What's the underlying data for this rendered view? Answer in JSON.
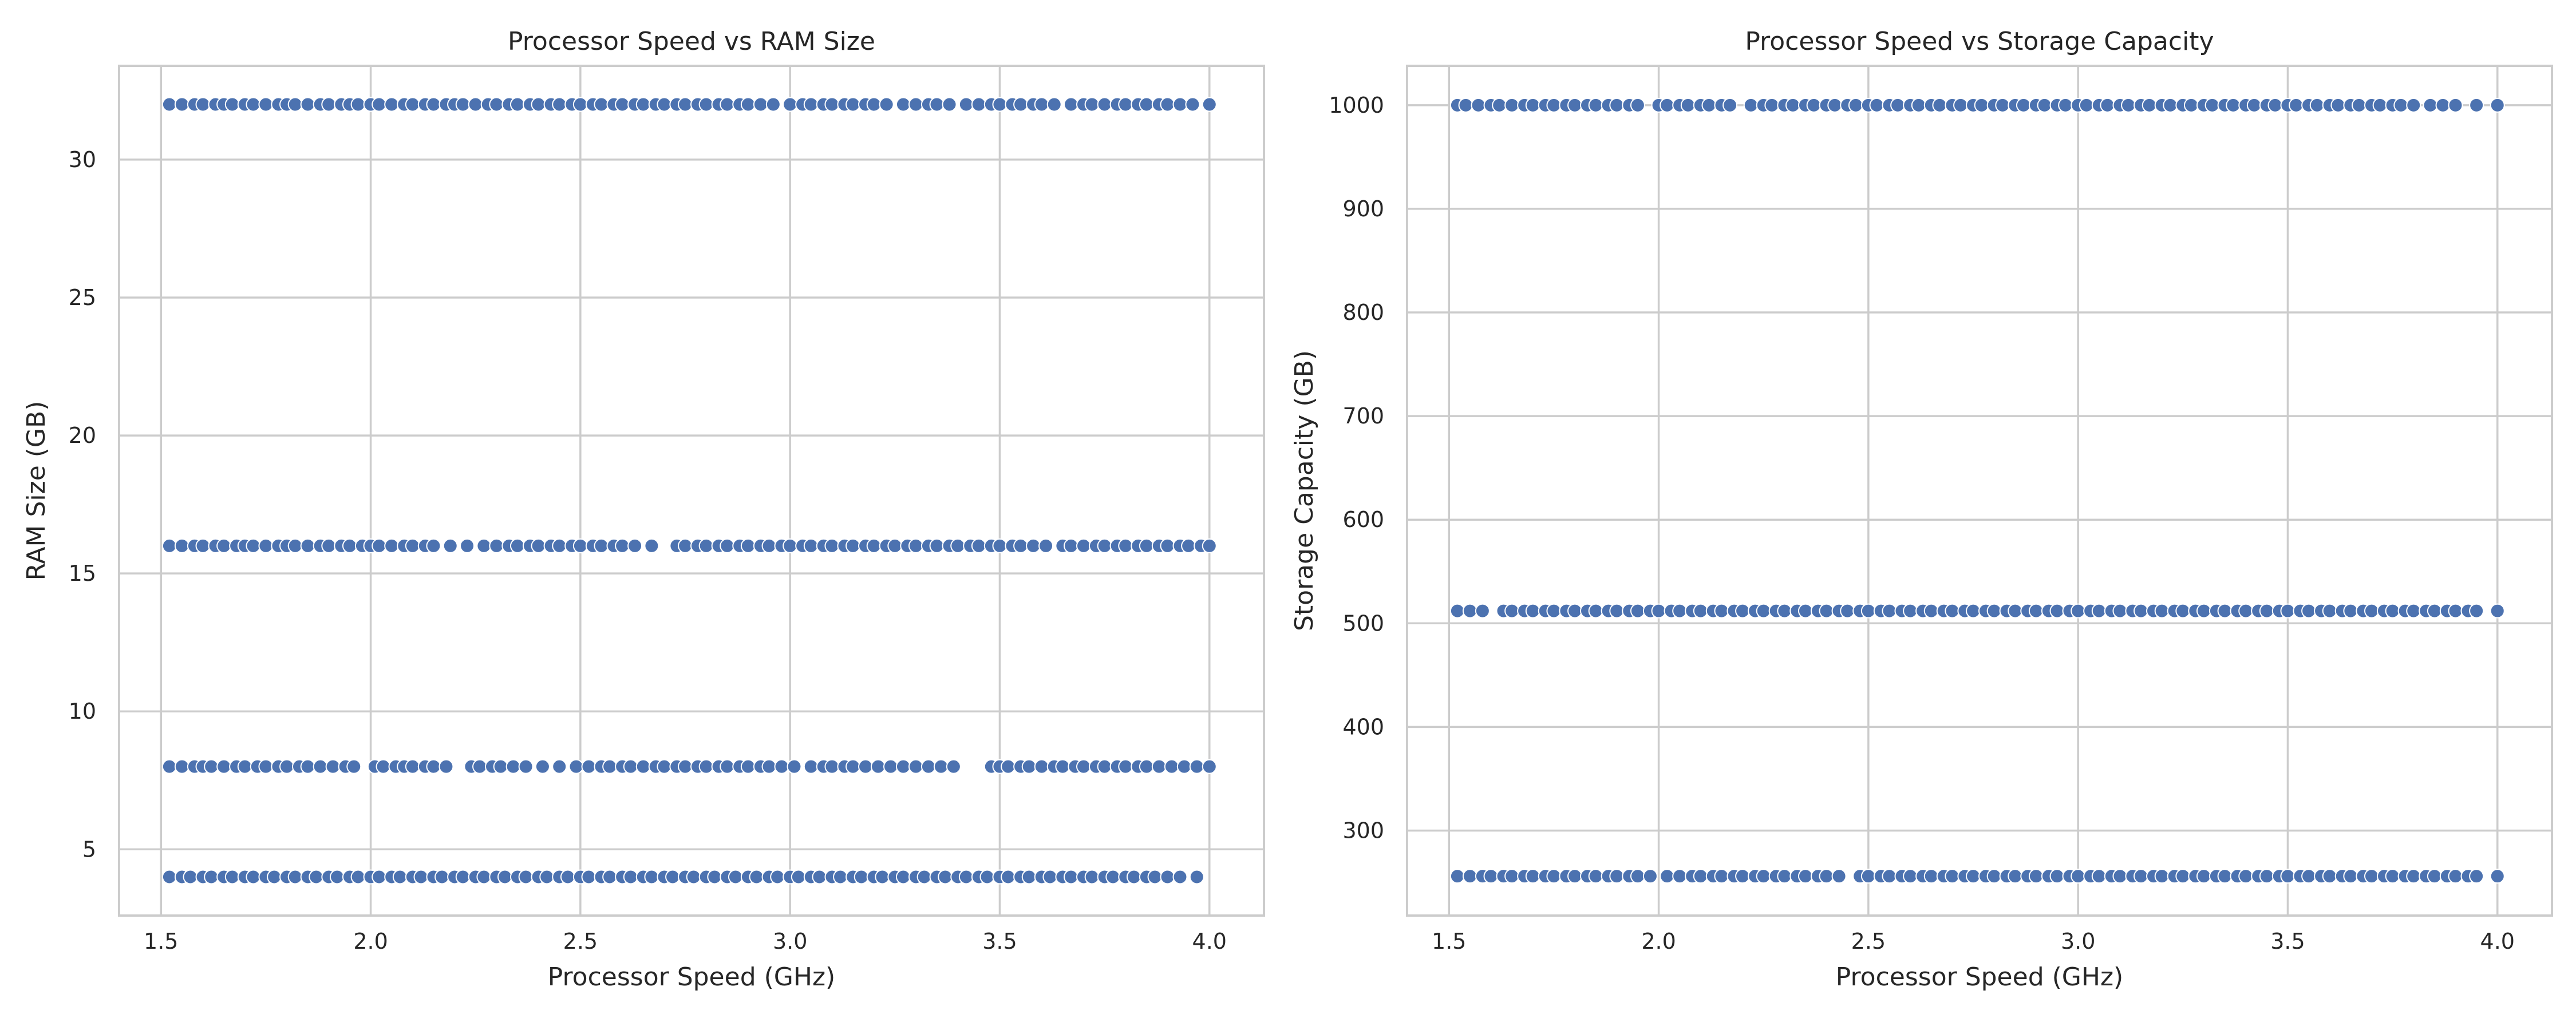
{
  "chart_data": [
    {
      "type": "scatter",
      "title": "Processor Speed vs RAM Size",
      "xlabel": "Processor Speed (GHz)",
      "ylabel": "RAM Size (GB)",
      "xlim": [
        1.4,
        4.13
      ],
      "ylim": [
        2.6,
        33.4
      ],
      "xticks": [
        1.5,
        2.0,
        2.5,
        3.0,
        3.5,
        4.0
      ],
      "xtick_labels": [
        "1.5",
        "2.0",
        "2.5",
        "3.0",
        "3.5",
        "4.0"
      ],
      "yticks": [
        5,
        10,
        15,
        20,
        25,
        30
      ],
      "ytick_labels": [
        "5",
        "10",
        "15",
        "20",
        "25",
        "30"
      ],
      "grid": true,
      "point_color": "#4c72b0",
      "levels": [
        {
          "y": 32,
          "x": [
            1.52,
            1.55,
            1.58,
            1.6,
            1.63,
            1.65,
            1.67,
            1.7,
            1.72,
            1.75,
            1.78,
            1.8,
            1.82,
            1.85,
            1.88,
            1.9,
            1.93,
            1.95,
            1.97,
            2.0,
            2.02,
            2.05,
            2.08,
            2.1,
            2.13,
            2.15,
            2.18,
            2.2,
            2.22,
            2.25,
            2.28,
            2.3,
            2.33,
            2.35,
            2.38,
            2.4,
            2.43,
            2.45,
            2.48,
            2.5,
            2.53,
            2.55,
            2.58,
            2.6,
            2.63,
            2.65,
            2.68,
            2.7,
            2.73,
            2.75,
            2.78,
            2.8,
            2.83,
            2.85,
            2.88,
            2.9,
            2.93,
            2.96,
            3.0,
            3.03,
            3.05,
            3.08,
            3.1,
            3.13,
            3.15,
            3.18,
            3.2,
            3.23,
            3.27,
            3.3,
            3.33,
            3.35,
            3.38,
            3.42,
            3.45,
            3.48,
            3.5,
            3.53,
            3.55,
            3.58,
            3.6,
            3.63,
            3.67,
            3.7,
            3.72,
            3.75,
            3.78,
            3.8,
            3.83,
            3.85,
            3.88,
            3.9,
            3.93,
            3.96,
            4.0
          ]
        },
        {
          "y": 16,
          "x": [
            1.52,
            1.55,
            1.58,
            1.6,
            1.63,
            1.65,
            1.68,
            1.7,
            1.72,
            1.75,
            1.78,
            1.8,
            1.82,
            1.85,
            1.88,
            1.9,
            1.93,
            1.95,
            1.98,
            2.0,
            2.02,
            2.05,
            2.08,
            2.1,
            2.13,
            2.15,
            2.19,
            2.23,
            2.27,
            2.3,
            2.33,
            2.35,
            2.38,
            2.4,
            2.43,
            2.45,
            2.48,
            2.5,
            2.53,
            2.55,
            2.58,
            2.6,
            2.63,
            2.67,
            2.73,
            2.75,
            2.78,
            2.8,
            2.83,
            2.85,
            2.88,
            2.9,
            2.93,
            2.95,
            2.98,
            3.0,
            3.03,
            3.05,
            3.08,
            3.1,
            3.13,
            3.15,
            3.18,
            3.2,
            3.23,
            3.25,
            3.28,
            3.3,
            3.33,
            3.35,
            3.38,
            3.4,
            3.43,
            3.45,
            3.48,
            3.5,
            3.53,
            3.55,
            3.58,
            3.61,
            3.65,
            3.67,
            3.7,
            3.73,
            3.75,
            3.78,
            3.8,
            3.83,
            3.85,
            3.88,
            3.9,
            3.93,
            3.95,
            3.98,
            4.0
          ]
        },
        {
          "y": 8,
          "x": [
            1.52,
            1.55,
            1.58,
            1.6,
            1.62,
            1.65,
            1.68,
            1.7,
            1.73,
            1.75,
            1.78,
            1.8,
            1.83,
            1.85,
            1.88,
            1.91,
            1.94,
            1.96,
            2.01,
            2.03,
            2.06,
            2.08,
            2.1,
            2.13,
            2.15,
            2.18,
            2.24,
            2.26,
            2.29,
            2.31,
            2.34,
            2.37,
            2.41,
            2.45,
            2.49,
            2.52,
            2.55,
            2.57,
            2.6,
            2.62,
            2.65,
            2.68,
            2.7,
            2.73,
            2.75,
            2.78,
            2.8,
            2.83,
            2.85,
            2.88,
            2.9,
            2.93,
            2.95,
            2.98,
            3.01,
            3.05,
            3.08,
            3.1,
            3.13,
            3.15,
            3.18,
            3.21,
            3.24,
            3.27,
            3.3,
            3.33,
            3.36,
            3.39,
            3.48,
            3.5,
            3.52,
            3.55,
            3.57,
            3.6,
            3.63,
            3.65,
            3.68,
            3.7,
            3.73,
            3.75,
            3.78,
            3.8,
            3.83,
            3.85,
            3.88,
            3.91,
            3.94,
            3.97,
            4.0
          ]
        },
        {
          "y": 4,
          "x": [
            1.52,
            1.55,
            1.57,
            1.6,
            1.62,
            1.65,
            1.67,
            1.7,
            1.72,
            1.75,
            1.77,
            1.8,
            1.82,
            1.85,
            1.87,
            1.9,
            1.92,
            1.95,
            1.97,
            2.0,
            2.02,
            2.05,
            2.07,
            2.1,
            2.12,
            2.15,
            2.17,
            2.2,
            2.22,
            2.25,
            2.27,
            2.3,
            2.32,
            2.35,
            2.37,
            2.4,
            2.42,
            2.45,
            2.47,
            2.5,
            2.52,
            2.55,
            2.57,
            2.6,
            2.62,
            2.65,
            2.67,
            2.7,
            2.72,
            2.75,
            2.77,
            2.8,
            2.82,
            2.85,
            2.87,
            2.9,
            2.92,
            2.95,
            2.97,
            3.0,
            3.02,
            3.05,
            3.07,
            3.1,
            3.12,
            3.15,
            3.17,
            3.2,
            3.22,
            3.25,
            3.27,
            3.3,
            3.32,
            3.35,
            3.37,
            3.4,
            3.42,
            3.45,
            3.47,
            3.5,
            3.52,
            3.55,
            3.57,
            3.6,
            3.62,
            3.65,
            3.67,
            3.7,
            3.72,
            3.75,
            3.77,
            3.8,
            3.82,
            3.85,
            3.87,
            3.9,
            3.93,
            3.97
          ]
        }
      ]
    },
    {
      "type": "scatter",
      "title": "Processor Speed vs Storage Capacity",
      "xlabel": "Processor Speed (GHz)",
      "ylabel": "Storage Capacity (GB)",
      "xlim": [
        1.4,
        4.13
      ],
      "ylim": [
        218,
        1038
      ],
      "xticks": [
        1.5,
        2.0,
        2.5,
        3.0,
        3.5,
        4.0
      ],
      "xtick_labels": [
        "1.5",
        "2.0",
        "2.5",
        "3.0",
        "3.5",
        "4.0"
      ],
      "yticks": [
        300,
        400,
        500,
        600,
        700,
        800,
        900,
        1000
      ],
      "ytick_labels": [
        "300",
        "400",
        "500",
        "600",
        "700",
        "800",
        "900",
        "1000"
      ],
      "grid": true,
      "point_color": "#4c72b0",
      "levels": [
        {
          "y": 1000,
          "x": [
            1.52,
            1.54,
            1.57,
            1.6,
            1.62,
            1.65,
            1.68,
            1.7,
            1.73,
            1.75,
            1.78,
            1.8,
            1.83,
            1.85,
            1.88,
            1.9,
            1.93,
            1.95,
            2.0,
            2.02,
            2.05,
            2.07,
            2.1,
            2.12,
            2.15,
            2.17,
            2.22,
            2.25,
            2.27,
            2.3,
            2.32,
            2.35,
            2.37,
            2.4,
            2.42,
            2.45,
            2.47,
            2.5,
            2.52,
            2.55,
            2.57,
            2.6,
            2.62,
            2.65,
            2.67,
            2.7,
            2.72,
            2.75,
            2.77,
            2.8,
            2.82,
            2.85,
            2.87,
            2.9,
            2.92,
            2.95,
            2.97,
            3.0,
            3.02,
            3.05,
            3.07,
            3.1,
            3.12,
            3.15,
            3.17,
            3.2,
            3.22,
            3.25,
            3.27,
            3.3,
            3.32,
            3.35,
            3.37,
            3.4,
            3.42,
            3.45,
            3.47,
            3.5,
            3.52,
            3.55,
            3.57,
            3.6,
            3.62,
            3.65,
            3.67,
            3.7,
            3.72,
            3.75,
            3.77,
            3.8,
            3.84,
            3.87,
            3.9,
            3.95,
            4.0
          ]
        },
        {
          "y": 512,
          "x": [
            1.52,
            1.55,
            1.58,
            1.63,
            1.65,
            1.68,
            1.7,
            1.73,
            1.75,
            1.78,
            1.8,
            1.83,
            1.85,
            1.88,
            1.9,
            1.93,
            1.95,
            1.98,
            2.0,
            2.03,
            2.05,
            2.08,
            2.1,
            2.13,
            2.15,
            2.18,
            2.2,
            2.23,
            2.25,
            2.28,
            2.3,
            2.33,
            2.35,
            2.38,
            2.4,
            2.43,
            2.45,
            2.48,
            2.5,
            2.53,
            2.55,
            2.58,
            2.6,
            2.63,
            2.65,
            2.68,
            2.7,
            2.73,
            2.75,
            2.78,
            2.8,
            2.83,
            2.85,
            2.88,
            2.9,
            2.93,
            2.95,
            2.98,
            3.0,
            3.03,
            3.05,
            3.08,
            3.1,
            3.13,
            3.15,
            3.18,
            3.2,
            3.23,
            3.25,
            3.28,
            3.3,
            3.33,
            3.35,
            3.38,
            3.4,
            3.43,
            3.45,
            3.48,
            3.5,
            3.53,
            3.55,
            3.58,
            3.6,
            3.63,
            3.65,
            3.68,
            3.7,
            3.73,
            3.75,
            3.78,
            3.8,
            3.83,
            3.85,
            3.88,
            3.9,
            3.93,
            3.95,
            4.0
          ]
        },
        {
          "y": 256,
          "x": [
            1.52,
            1.55,
            1.58,
            1.6,
            1.63,
            1.65,
            1.68,
            1.7,
            1.73,
            1.75,
            1.78,
            1.8,
            1.83,
            1.85,
            1.88,
            1.9,
            1.93,
            1.95,
            1.98,
            2.02,
            2.05,
            2.08,
            2.1,
            2.13,
            2.15,
            2.18,
            2.2,
            2.23,
            2.25,
            2.28,
            2.3,
            2.33,
            2.35,
            2.38,
            2.4,
            2.43,
            2.48,
            2.5,
            2.53,
            2.55,
            2.58,
            2.6,
            2.63,
            2.65,
            2.68,
            2.7,
            2.73,
            2.75,
            2.78,
            2.8,
            2.83,
            2.85,
            2.88,
            2.9,
            2.93,
            2.95,
            2.98,
            3.0,
            3.03,
            3.05,
            3.08,
            3.1,
            3.13,
            3.15,
            3.18,
            3.2,
            3.23,
            3.25,
            3.28,
            3.3,
            3.33,
            3.35,
            3.38,
            3.4,
            3.43,
            3.45,
            3.48,
            3.5,
            3.53,
            3.55,
            3.58,
            3.6,
            3.63,
            3.65,
            3.68,
            3.7,
            3.73,
            3.75,
            3.78,
            3.8,
            3.83,
            3.85,
            3.88,
            3.9,
            3.93,
            3.95,
            4.0
          ]
        }
      ]
    }
  ]
}
